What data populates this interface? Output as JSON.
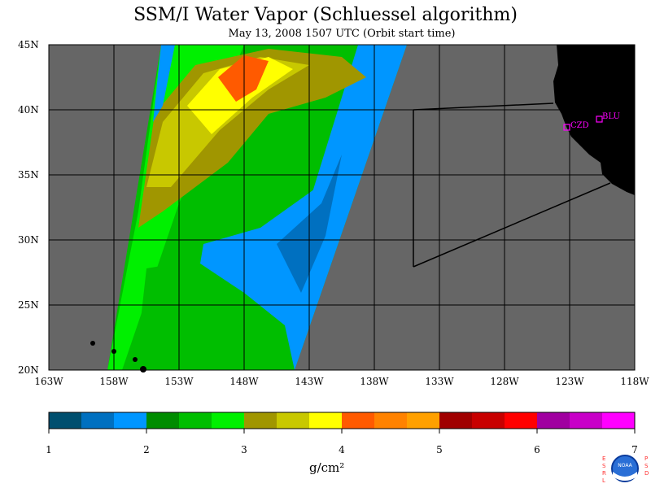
{
  "title": "SSM/I Water Vapor (Schluessel algorithm)",
  "subtitle": "May 13, 2008  1507 UTC  (Orbit start time)",
  "map": {
    "lat_labels": [
      "45N",
      "40N",
      "35N",
      "30N",
      "25N",
      "20N"
    ],
    "lon_labels": [
      "163W",
      "158W",
      "153W",
      "148W",
      "143W",
      "138W",
      "133W",
      "128W",
      "123W",
      "118W"
    ],
    "stations": [
      {
        "code": "CZD"
      },
      {
        "code": "BLU"
      }
    ],
    "background_color": "#666666",
    "land_color": "#000000"
  },
  "colorbar": {
    "tick_labels": [
      "1",
      "2",
      "3",
      "4",
      "5",
      "6",
      "7"
    ],
    "units": "g/cm²",
    "colors": [
      "#004f6f",
      "#0070c0",
      "#0096ff",
      "#008c00",
      "#00be00",
      "#00f000",
      "#a09600",
      "#c8c800",
      "#ffff00",
      "#ff5a00",
      "#ff8200",
      "#ffa000",
      "#a00000",
      "#c80000",
      "#ff0000",
      "#a000a0",
      "#c800c8",
      "#ff00ff"
    ]
  },
  "logo": {
    "left_letters": "ESRL",
    "right_letters": "PSD",
    "center_text": "NOAA"
  }
}
